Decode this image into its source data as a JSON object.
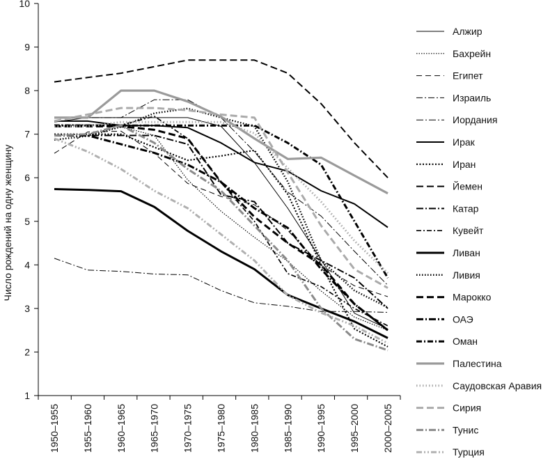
{
  "chart_data": {
    "type": "line",
    "title": "",
    "xlabel": "",
    "ylabel": "Число рождений на одну женщину",
    "ylim": [
      1,
      10
    ],
    "yticks": [
      1,
      2,
      3,
      4,
      5,
      6,
      7,
      8,
      9,
      10
    ],
    "grid": false,
    "legend_position": "right",
    "categories": [
      "1950–1955",
      "1955–1960",
      "1960–1965",
      "1965–1970",
      "1970–1975",
      "1975–1980",
      "1980–1985",
      "1985–1990",
      "1990–1995",
      "1995–2000",
      "2000–2005"
    ],
    "series": [
      {
        "name": "Алжир",
        "color": "#000000",
        "width": 1,
        "dash": "",
        "values": [
          7.28,
          7.38,
          7.38,
          7.38,
          7.38,
          7.18,
          6.35,
          5.3,
          4.12,
          2.89,
          2.53
        ]
      },
      {
        "name": "Бахрейн",
        "color": "#000000",
        "width": 1.2,
        "dash": "1.5,2",
        "values": [
          6.97,
          7.0,
          7.17,
          6.97,
          5.95,
          5.23,
          4.63,
          4.08,
          3.4,
          2.8,
          2.5
        ]
      },
      {
        "name": "Египет",
        "color": "#000000",
        "width": 1,
        "dash": "8,5",
        "values": [
          6.56,
          7.05,
          7.07,
          6.56,
          5.87,
          5.57,
          5.38,
          4.79,
          3.99,
          3.52,
          3.27
        ]
      },
      {
        "name": "Израиль",
        "color": "#000000",
        "width": 1,
        "dash": "9,3,2,3",
        "values": [
          4.15,
          3.88,
          3.85,
          3.79,
          3.77,
          3.41,
          3.13,
          3.05,
          2.93,
          2.93,
          2.91
        ]
      },
      {
        "name": "Иордания",
        "color": "#000000",
        "width": 1,
        "dash": "10,3,2,3",
        "values": [
          7.38,
          7.38,
          7.38,
          7.79,
          7.79,
          7.38,
          6.6,
          5.67,
          5.12,
          4.31,
          3.53
        ]
      },
      {
        "name": "Ирак",
        "color": "#000000",
        "width": 2,
        "dash": "",
        "values": [
          7.3,
          7.3,
          7.2,
          7.2,
          7.15,
          6.8,
          6.35,
          6.15,
          5.7,
          5.4,
          4.86
        ]
      },
      {
        "name": "Иран",
        "color": "#000000",
        "width": 2.2,
        "dash": "2,2.5",
        "values": [
          7.0,
          7.0,
          7.0,
          6.7,
          6.4,
          6.5,
          6.63,
          5.62,
          4.0,
          2.53,
          2.12
        ]
      },
      {
        "name": "Йемен",
        "color": "#000000",
        "width": 2,
        "dash": "10,5",
        "values": [
          8.2,
          8.3,
          8.4,
          8.55,
          8.7,
          8.7,
          8.7,
          8.4,
          7.7,
          6.8,
          6.0
        ]
      },
      {
        "name": "Катар",
        "color": "#000000",
        "width": 2,
        "dash": "10,3,2,3",
        "values": [
          6.97,
          6.97,
          6.97,
          6.97,
          6.77,
          5.61,
          5.45,
          4.5,
          4.1,
          3.7,
          3.0
        ]
      },
      {
        "name": "Кувейт",
        "color": "#000000",
        "width": 1.7,
        "dash": "7,3,2,3",
        "values": [
          7.21,
          7.21,
          7.21,
          7.41,
          6.9,
          5.89,
          5.0,
          3.8,
          3.5,
          3.0,
          2.6
        ]
      },
      {
        "name": "Ливан",
        "color": "#000000",
        "width": 3,
        "dash": "",
        "values": [
          5.74,
          5.72,
          5.69,
          5.33,
          4.78,
          4.31,
          3.9,
          3.31,
          3.0,
          2.7,
          2.32
        ]
      },
      {
        "name": "Ливия",
        "color": "#000000",
        "width": 2.5,
        "dash": "1.5,2.5",
        "values": [
          6.87,
          6.96,
          7.17,
          7.48,
          7.59,
          7.38,
          7.18,
          5.91,
          4.1,
          3.41,
          3.02
        ]
      },
      {
        "name": "Марокко",
        "color": "#000000",
        "width": 3,
        "dash": "10,5",
        "values": [
          7.18,
          7.18,
          7.18,
          7.1,
          6.9,
          5.9,
          5.1,
          4.5,
          4.0,
          3.1,
          2.5
        ]
      },
      {
        "name": "ОАЭ",
        "color": "#000000",
        "width": 3,
        "dash": "10,3,2,3",
        "values": [
          6.97,
          6.97,
          6.77,
          6.57,
          6.3,
          5.9,
          5.3,
          4.85,
          3.9,
          3.1,
          2.5
        ]
      },
      {
        "name": "Оман",
        "color": "#000000",
        "width": 3,
        "dash": "8,3,2,3",
        "values": [
          7.2,
          7.2,
          7.2,
          7.2,
          7.2,
          7.2,
          7.2,
          6.8,
          6.3,
          5.0,
          3.7
        ]
      },
      {
        "name": "Палестина",
        "color": "#9a9a9a",
        "width": 3.2,
        "dash": "",
        "values": [
          7.38,
          7.38,
          8.0,
          8.0,
          7.75,
          7.4,
          6.9,
          6.43,
          6.46,
          6.05,
          5.64
        ]
      },
      {
        "name": "Саудовская Аравия",
        "color": "#aaaaaa",
        "width": 3,
        "dash": "1.5,3",
        "values": [
          7.18,
          7.18,
          7.28,
          7.28,
          7.28,
          7.28,
          7.02,
          6.22,
          5.45,
          4.55,
          3.81
        ]
      },
      {
        "name": "Сирия",
        "color": "#aaaaaa",
        "width": 3,
        "dash": "10,5",
        "values": [
          7.3,
          7.45,
          7.6,
          7.6,
          7.55,
          7.45,
          7.38,
          6.12,
          4.9,
          3.9,
          3.47
        ]
      },
      {
        "name": "Тунис",
        "color": "#8a8a8a",
        "width": 3,
        "dash": "10,3,2,3",
        "values": [
          6.97,
          7.0,
          7.2,
          6.8,
          6.2,
          5.7,
          4.9,
          4.1,
          3.0,
          2.3,
          2.04
        ]
      },
      {
        "name": "Турция",
        "color": "#b0b0b0",
        "width": 3,
        "dash": "8,3,2,3,2,3",
        "values": [
          6.9,
          6.6,
          6.2,
          5.7,
          5.3,
          4.7,
          4.1,
          3.3,
          2.9,
          2.6,
          2.2
        ]
      }
    ]
  }
}
